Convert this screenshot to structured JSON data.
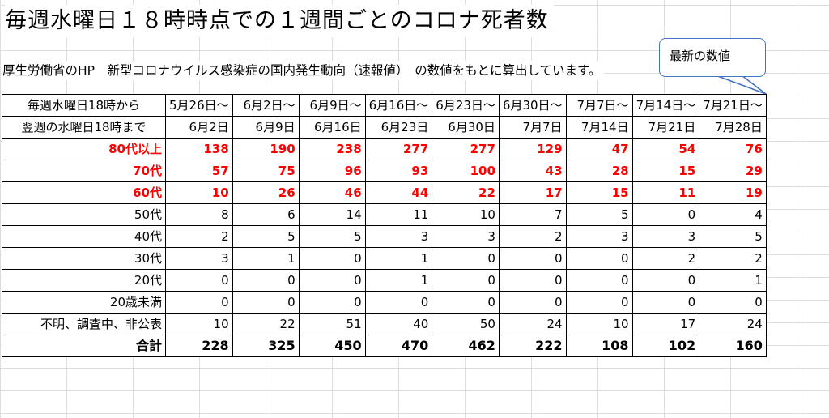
{
  "title": "毎週水曜日１８時時点での１週間ごとのコロナ死者数",
  "subtitle": "厚生労働省のHP　新型コロナウイルス感染症の国内発生動向（速報値）　の数値をもとに算出しています。",
  "callout": "最新の数値",
  "table": {
    "header_row1_label": "毎週水曜日18時から",
    "header_row2_label": "翌週の水曜日18時まで",
    "columns": [
      {
        "from": "5月26日～",
        "to": "6月2日"
      },
      {
        "from": "6月2日～",
        "to": "6月9日"
      },
      {
        "from": "6月9日～",
        "to": "6月16日"
      },
      {
        "from": "6月16日～",
        "to": "6月23日"
      },
      {
        "from": "6月23日～",
        "to": "6月30日"
      },
      {
        "from": "6月30日～",
        "to": "7月7日"
      },
      {
        "from": "7月7日～",
        "to": "7月14日"
      },
      {
        "from": "7月14日～",
        "to": "7月21日"
      },
      {
        "from": "7月21日～",
        "to": "7月28日"
      }
    ],
    "rows": [
      {
        "label": "80代以上",
        "values": [
          "138",
          "190",
          "238",
          "277",
          "277",
          "129",
          "47",
          "54",
          "76"
        ]
      },
      {
        "label": "70代",
        "values": [
          "57",
          "75",
          "96",
          "93",
          "100",
          "43",
          "28",
          "15",
          "29"
        ]
      },
      {
        "label": "60代",
        "values": [
          "10",
          "26",
          "46",
          "44",
          "22",
          "17",
          "15",
          "11",
          "19"
        ]
      },
      {
        "label": "50代",
        "values": [
          "8",
          "6",
          "14",
          "11",
          "10",
          "7",
          "5",
          "0",
          "4"
        ]
      },
      {
        "label": "40代",
        "values": [
          "2",
          "5",
          "5",
          "3",
          "3",
          "2",
          "3",
          "3",
          "5"
        ]
      },
      {
        "label": "30代",
        "values": [
          "3",
          "1",
          "0",
          "1",
          "0",
          "0",
          "0",
          "2",
          "2"
        ]
      },
      {
        "label": "20代",
        "values": [
          "0",
          "0",
          "0",
          "1",
          "0",
          "0",
          "0",
          "0",
          "1"
        ]
      },
      {
        "label": "20歳未満",
        "values": [
          "0",
          "0",
          "0",
          "0",
          "0",
          "0",
          "0",
          "0",
          "0"
        ]
      },
      {
        "label": "不明、調査中、非公表",
        "values": [
          "10",
          "22",
          "51",
          "40",
          "50",
          "24",
          "10",
          "17",
          "24"
        ]
      },
      {
        "label": "合計",
        "values": [
          "228",
          "325",
          "450",
          "470",
          "462",
          "222",
          "108",
          "102",
          "160"
        ]
      }
    ]
  },
  "colors": {
    "highlight_red": "#ff0000",
    "callout_border": "#4472c4",
    "gridline": "#dadada"
  }
}
